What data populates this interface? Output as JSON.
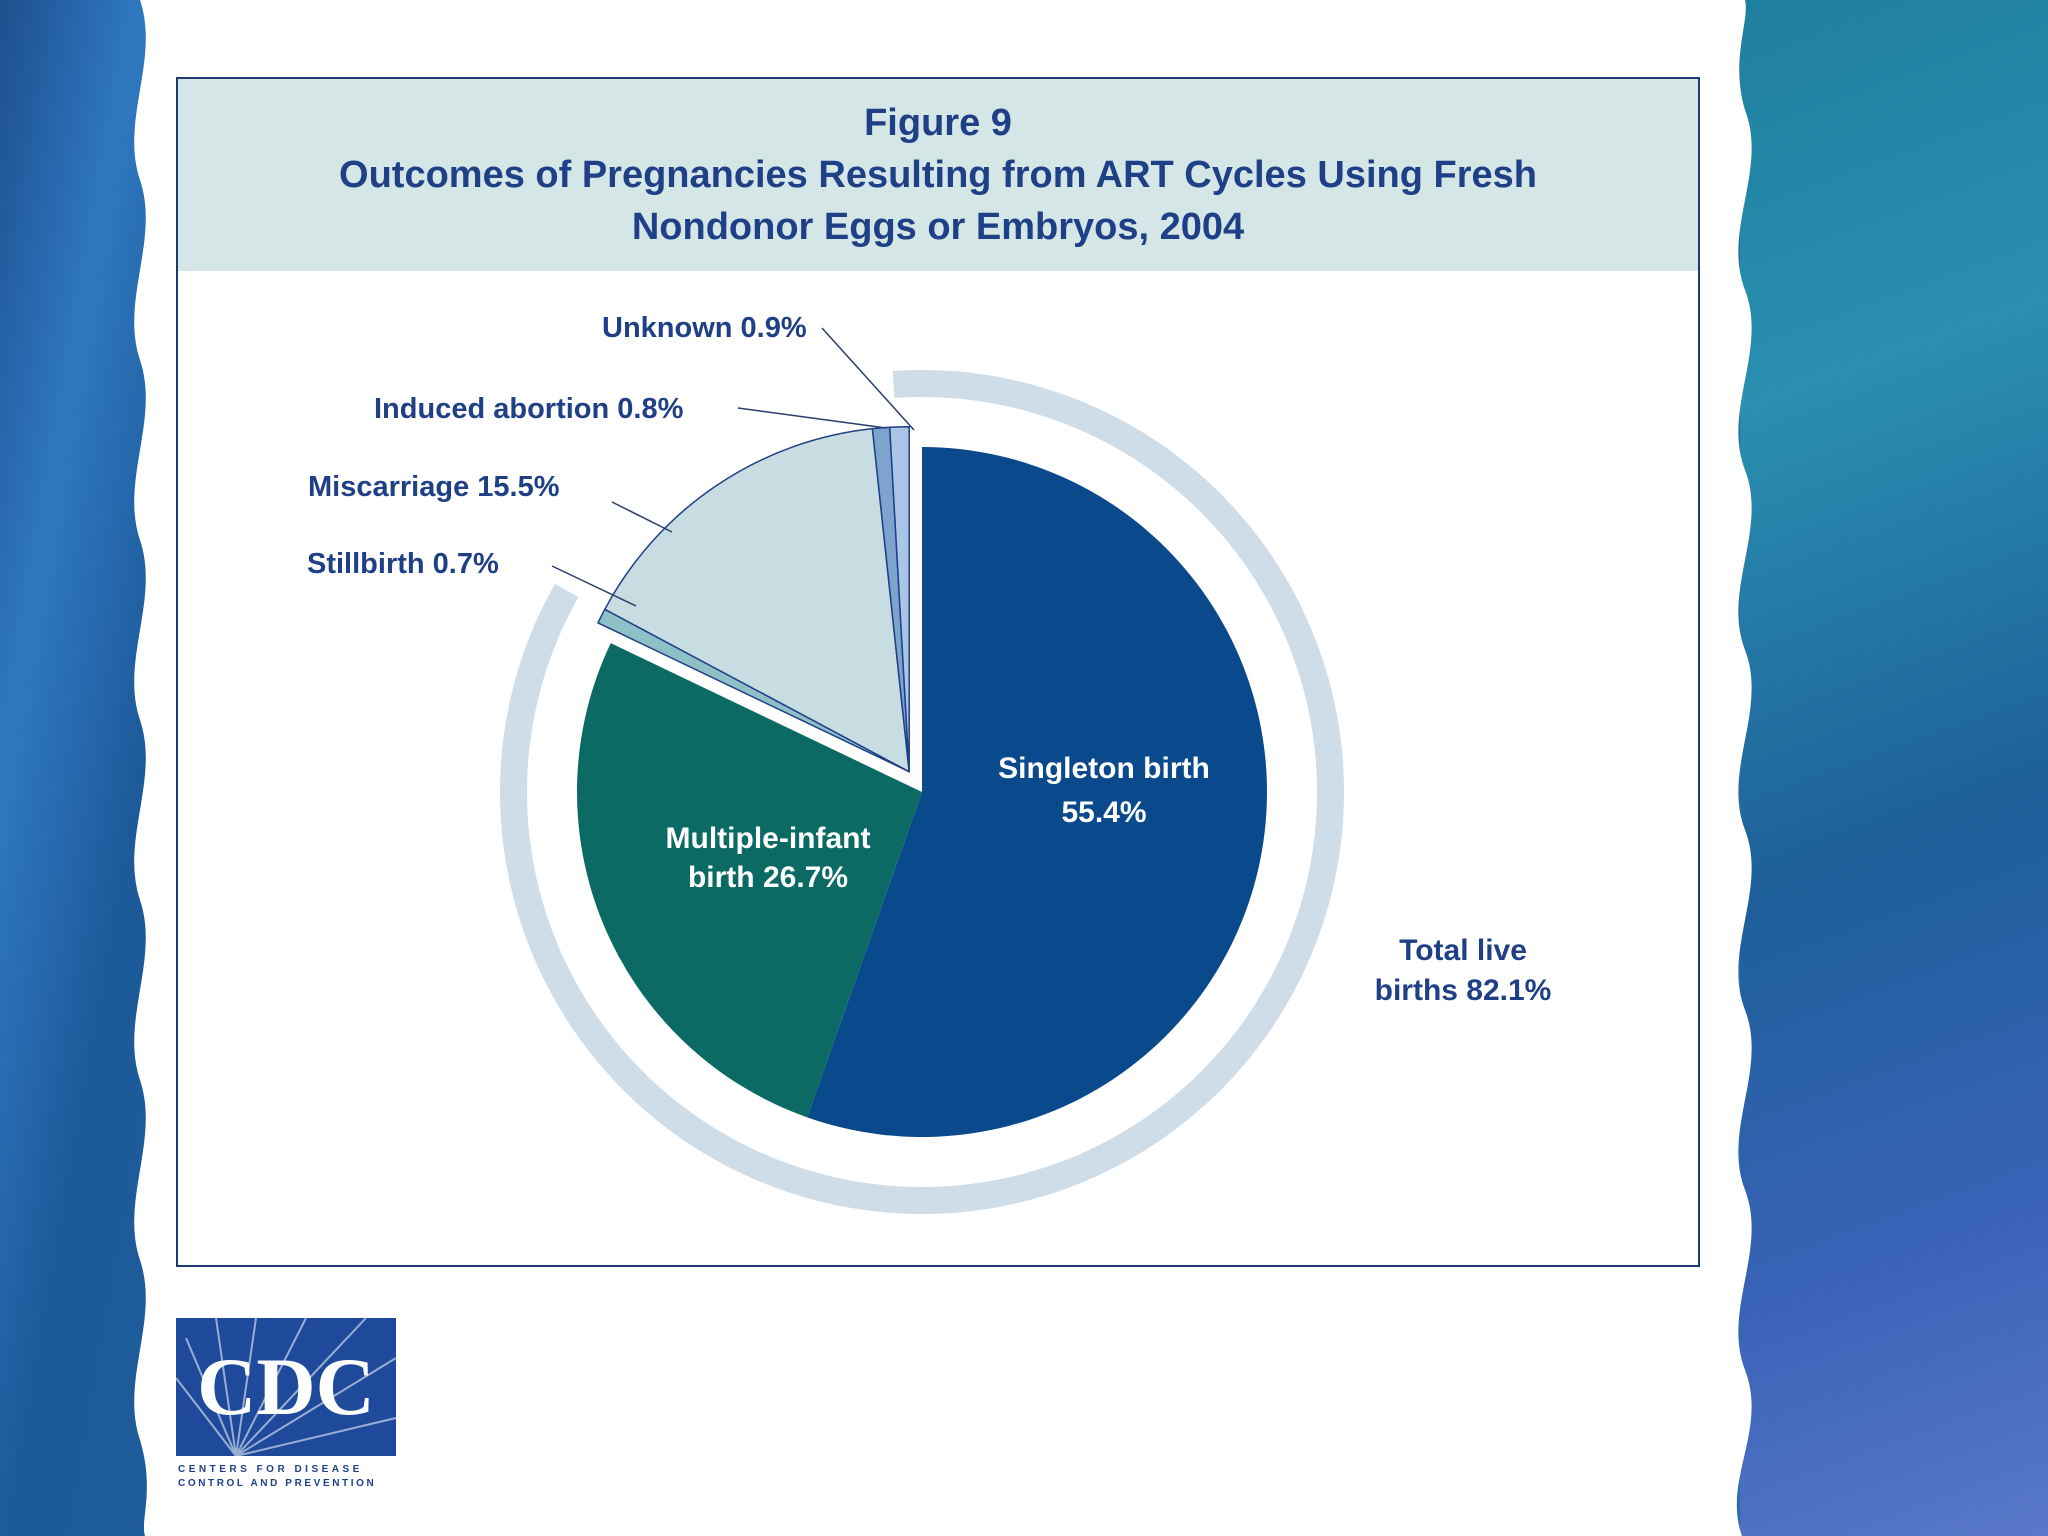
{
  "figure": {
    "number": "Figure 9",
    "title_line1": "Outcomes of Pregnancies Resulting from ART Cycles Using Fresh",
    "title_line2": "Nondonor Eggs or Embryos, 2004"
  },
  "chart_data": {
    "type": "pie",
    "title": "Outcomes of Pregnancies Resulting from ART Cycles Using Fresh Nondonor Eggs or Embryos, 2004",
    "slices": [
      {
        "name": "Singleton birth",
        "value": 55.4,
        "label_line1": "Singleton birth",
        "label_line2": "55.4%",
        "color": "#0a4a8c",
        "group": "live"
      },
      {
        "name": "Multiple-infant birth",
        "value": 26.7,
        "label_line1": "Multiple-infant",
        "label_line2": "birth 26.7%",
        "color": "#0b6a63",
        "group": "live"
      },
      {
        "name": "Stillbirth",
        "value": 0.7,
        "label": "Stillbirth 0.7%",
        "color": "#8ec0c8",
        "group": "other"
      },
      {
        "name": "Miscarriage",
        "value": 15.5,
        "label": "Miscarriage 15.5%",
        "color": "#c7dde2",
        "group": "other"
      },
      {
        "name": "Induced abortion",
        "value": 0.8,
        "label": "Induced abortion 0.8%",
        "color": "#7ea3cf",
        "group": "other"
      },
      {
        "name": "Unknown",
        "value": 0.9,
        "label": "Unknown 0.9%",
        "color": "#a9c6e6",
        "group": "other"
      }
    ],
    "group_total": {
      "name": "Total live births",
      "value": 82.1,
      "label_line1": "Total live",
      "label_line2": "births 82.1%"
    }
  },
  "logo": {
    "text": "CDC",
    "subtitle_line1": "CENTERS FOR DISEASE",
    "subtitle_line2": "CONTROL AND PREVENTION"
  },
  "colors": {
    "title": "#1f3f87",
    "ring": "#cfdde9",
    "leader": "#2a3d6b"
  }
}
